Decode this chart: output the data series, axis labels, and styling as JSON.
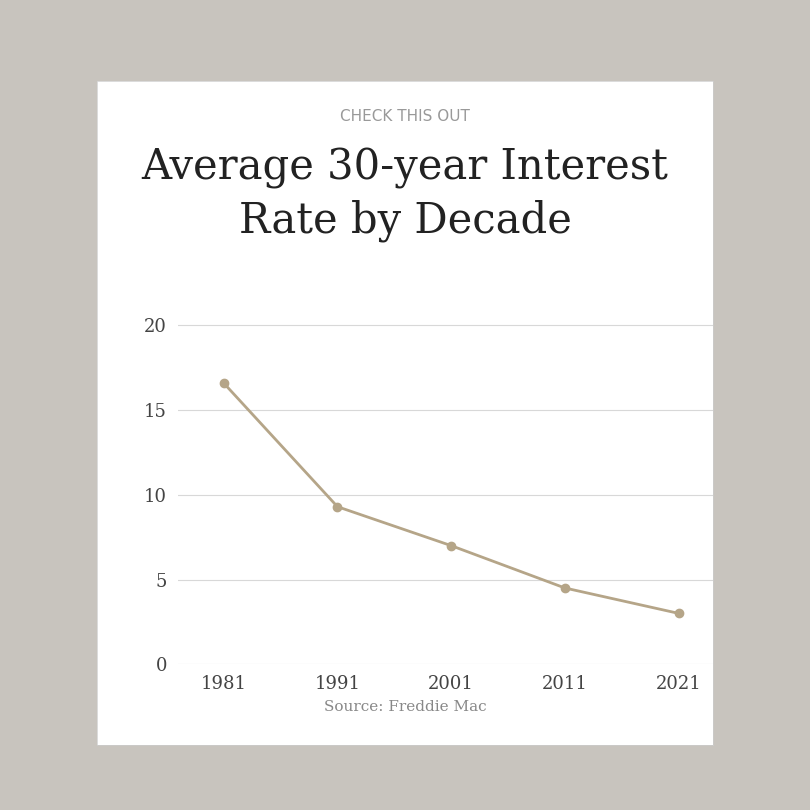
{
  "subtitle": "CHECK THIS OUT",
  "title": "Average 30-year Interest\nRate by Decade",
  "source": "Source: Freddie Mac",
  "x_values": [
    1981,
    1991,
    2001,
    2011,
    2021
  ],
  "y_values": [
    16.6,
    9.3,
    7.0,
    4.5,
    3.0
  ],
  "x_ticks": [
    1981,
    1991,
    2001,
    2011,
    2021
  ],
  "y_ticks": [
    0,
    5,
    10,
    15,
    20
  ],
  "ylim": [
    0,
    22
  ],
  "xlim": [
    1977,
    2024
  ],
  "line_color": "#b5a588",
  "marker_color": "#b5a588",
  "grid_color": "#d8d8d8",
  "bg_color": "#ffffff",
  "outer_bg": "#c8c4be",
  "title_fontsize": 30,
  "subtitle_fontsize": 11,
  "tick_fontsize": 13,
  "source_fontsize": 11,
  "line_width": 2.0,
  "marker_size": 6
}
